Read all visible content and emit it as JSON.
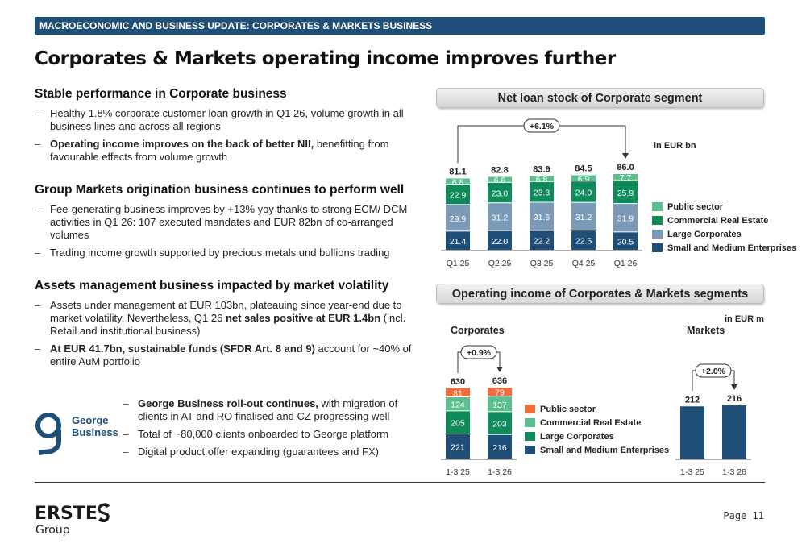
{
  "header": {
    "section": "MACROECONOMIC AND BUSINESS UPDATE: CORPORATES & MARKETS BUSINESS",
    "title": "Corporates & Markets operating income improves further"
  },
  "left": {
    "s1": {
      "title": "Stable performance in Corporate business",
      "b1": "Healthy 1.8% corporate customer loan growth in Q1 26, volume growth in all business lines and across all regions",
      "b2_bold": "Operating income improves on the back of better NII,",
      "b2_rest": " benefitting from favourable effects from volume growth"
    },
    "s2": {
      "title": "Group Markets origination business continues to perform well",
      "b1": "Fee-generating business improves by +13% yoy thanks to strong ECM/ DCM activities in Q1 26: 107 executed mandates and EUR 82bn of co-arranged volumes",
      "b2": "Trading income growth supported by precious metals und bullions trading"
    },
    "s3": {
      "title": "Assets management business impacted by market volatility",
      "b1_a": "Assets under management at EUR 103bn, plateauing since year-end due to market volatility. Nevertheless, Q1 26 ",
      "b1_bold": "net sales positive at EUR 1.4bn",
      "b1_b": " (incl. Retail and institutional business)",
      "b2_bold": "At EUR 41.7bn, sustainable funds (SFDR Art. 8 and 9)",
      "b2_rest": " account for ~40% of entire AuM portfolio"
    },
    "george": {
      "logo_line1": "George",
      "logo_line2": "Business",
      "b1_bold": "George Business roll-out continues,",
      "b1_rest": " with migration of clients in AT and RO finalised and CZ progressing well",
      "b2": "Total of ~80,000 clients onboarded to George platform",
      "b3": "Digital product offer expanding (guarantees and FX)"
    }
  },
  "panel1": {
    "title": "Net loan stock of Corporate segment",
    "unit": "in EUR bn",
    "growth": "+6.1%"
  },
  "panel2": {
    "title": "Operating income of Corporates & Markets segments",
    "unit": "in EUR m",
    "corp_title": "Corporates",
    "mkt_title": "Markets",
    "corp_growth": "+0.9%",
    "mkt_growth": "+2.0%"
  },
  "colors": {
    "public": "#5cc08e",
    "cre": "#0f8a5a",
    "large": "#7a9ab8",
    "sme": "#1f4e79",
    "public2": "#f26b3a",
    "cre2": "#5cc08e",
    "large2": "#0f8a5a",
    "sme2": "#1f4e79",
    "markets": "#1f4e79"
  },
  "legend1": [
    "Public sector",
    "Commercial Real Estate",
    "Large Corporates",
    "Small and Medium Enterprises"
  ],
  "legend2": [
    "Public sector",
    "Commercial Real Estate",
    "Large Corporates",
    "Small and Medium Enterprises"
  ],
  "chart_data": [
    {
      "type": "bar",
      "stacked": true,
      "categories": [
        "Q1 25",
        "Q2 25",
        "Q3 25",
        "Q4 25",
        "Q1 26"
      ],
      "series": [
        {
          "name": "Small and Medium Enterprises",
          "values": [
            21.4,
            22.0,
            22.2,
            22.5,
            20.5
          ]
        },
        {
          "name": "Large Corporates",
          "values": [
            29.9,
            31.2,
            31.6,
            31.2,
            31.9
          ]
        },
        {
          "name": "Commercial Real Estate",
          "values": [
            22.9,
            23.0,
            23.3,
            24.0,
            25.9
          ]
        },
        {
          "name": "Public sector",
          "values": [
            6.8,
            6.6,
            6.8,
            6.9,
            7.7
          ]
        }
      ],
      "totals": [
        81.1,
        82.8,
        83.9,
        84.5,
        86.0
      ]
    },
    {
      "type": "bar",
      "stacked": true,
      "categories": [
        "1-3 25",
        "1-3 26"
      ],
      "series": [
        {
          "name": "Small and Medium Enterprises",
          "values": [
            221,
            216
          ]
        },
        {
          "name": "Large Corporates",
          "values": [
            205,
            203
          ]
        },
        {
          "name": "Commercial Real Estate",
          "values": [
            124,
            137
          ]
        },
        {
          "name": "Public sector",
          "values": [
            81,
            79
          ]
        }
      ],
      "totals": [
        630,
        636
      ]
    },
    {
      "type": "bar",
      "categories": [
        "1-3 25",
        "1-3 26"
      ],
      "values": [
        212,
        216
      ]
    }
  ],
  "footer": {
    "logo_top": "ERSTE",
    "logo_bottom": "Group",
    "page": "Page 11"
  }
}
